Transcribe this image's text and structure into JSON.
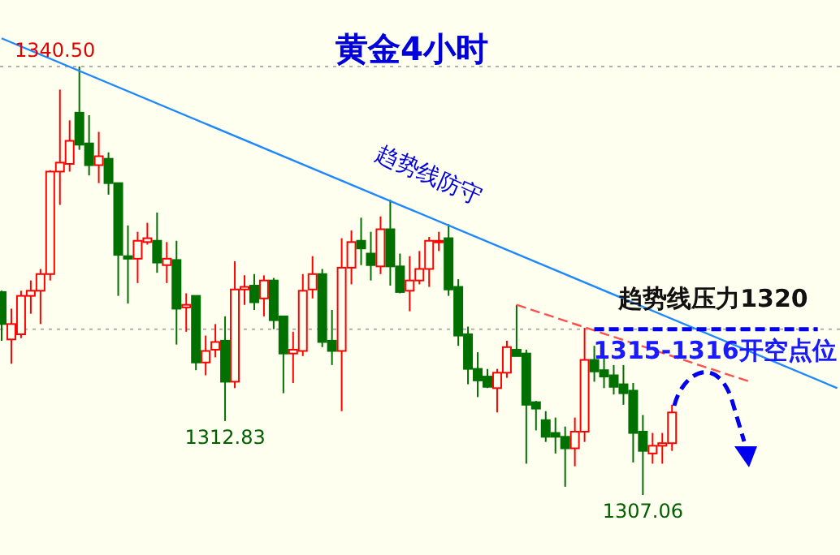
{
  "chart_data": {
    "type": "candlestick",
    "title": "黄金4小时",
    "categories": [
      null,
      null,
      null,
      null,
      null,
      null,
      null,
      null,
      null,
      null,
      null,
      null,
      null,
      null,
      null,
      null,
      null,
      null,
      null,
      null,
      null,
      null,
      null,
      null,
      null,
      null,
      null,
      null,
      null,
      null,
      null,
      null,
      null,
      null,
      null,
      null,
      null,
      null,
      null,
      null,
      null,
      null,
      null,
      null,
      null,
      null,
      null,
      null,
      null,
      null,
      null,
      null,
      null,
      null,
      null,
      null,
      null,
      null,
      null,
      null,
      null,
      null,
      null,
      null,
      null,
      null,
      null,
      null,
      null,
      null,
      null,
      null,
      null,
      null,
      null,
      null,
      null,
      null,
      null,
      null,
      null,
      null,
      null,
      null,
      null,
      null,
      null
    ],
    "ohlc": [
      [
        1322.9,
        1323.0,
        1319.1,
        1320.4
      ],
      [
        1319.2,
        1321.6,
        1317.3,
        1320.4
      ],
      [
        1319.6,
        1323.0,
        1319.3,
        1322.6
      ],
      [
        1322.6,
        1323.8,
        1321.2,
        1323.0
      ],
      [
        1323.0,
        1324.7,
        1320.4,
        1324.3
      ],
      [
        1324.3,
        1332.4,
        1323.8,
        1332.3
      ],
      [
        1332.3,
        1338.7,
        1329.7,
        1333.0
      ],
      [
        1332.9,
        1336.3,
        1332.3,
        1334.7
      ],
      [
        1336.9,
        1340.5,
        1334.0,
        1334.4
      ],
      [
        1334.5,
        1336.7,
        1332.0,
        1332.8
      ],
      [
        1332.8,
        1335.4,
        1331.4,
        1333.5
      ],
      [
        1333.3,
        1333.8,
        1330.5,
        1331.4
      ],
      [
        1331.4,
        1331.4,
        1322.6,
        1325.8
      ],
      [
        1325.7,
        1328.1,
        1322.0,
        1325.5
      ],
      [
        1325.5,
        1327.6,
        1323.6,
        1326.9
      ],
      [
        1326.8,
        1328.3,
        1326.6,
        1327.1
      ],
      [
        1326.9,
        1329.1,
        1324.4,
        1325.2
      ],
      [
        1325.0,
        1326.8,
        1323.6,
        1325.5
      ],
      [
        1325.4,
        1326.9,
        1318.8,
        1321.6
      ],
      [
        1321.7,
        1322.8,
        1319.8,
        1321.9
      ],
      [
        1322.6,
        1322.6,
        1316.8,
        1317.4
      ],
      [
        1317.4,
        1319.5,
        1316.4,
        1318.3
      ],
      [
        1318.4,
        1320.4,
        1317.8,
        1319.0
      ],
      [
        1319.1,
        1321.0,
        1312.83,
        1315.9
      ],
      [
        1315.9,
        1325.3,
        1315.4,
        1323.1
      ],
      [
        1323.1,
        1324.2,
        1321.9,
        1323.3
      ],
      [
        1323.4,
        1324.3,
        1321.5,
        1322.1
      ],
      [
        1322.4,
        1324.2,
        1321.0,
        1323.8
      ],
      [
        1323.8,
        1324.0,
        1320.0,
        1320.7
      ],
      [
        1321.0,
        1321.0,
        1315.0,
        1318.1
      ],
      [
        1318.1,
        1319.8,
        1315.8,
        1318.4
      ],
      [
        1318.3,
        1324.3,
        1317.9,
        1323.0
      ],
      [
        1323.1,
        1325.7,
        1322.4,
        1324.3
      ],
      [
        1324.3,
        1324.7,
        1318.6,
        1319.0
      ],
      [
        1319.1,
        1321.5,
        1317.2,
        1318.3
      ],
      [
        1318.3,
        1327.1,
        1313.6,
        1324.8
      ],
      [
        1324.8,
        1327.7,
        1323.5,
        1326.8
      ],
      [
        1326.9,
        1328.7,
        1325.0,
        1326.3
      ],
      [
        1325.9,
        1327.6,
        1323.8,
        1325.0
      ],
      [
        1324.9,
        1328.8,
        1324.3,
        1327.8
      ],
      [
        1327.8,
        1330.1,
        1323.4,
        1324.9
      ],
      [
        1324.9,
        1325.9,
        1322.8,
        1322.9
      ],
      [
        1323.0,
        1325.7,
        1321.4,
        1323.8
      ],
      [
        1323.8,
        1326.1,
        1323.5,
        1324.7
      ],
      [
        1324.7,
        1327.2,
        1323.3,
        1326.9
      ],
      [
        1326.8,
        1327.6,
        1326.1,
        1326.9
      ],
      [
        1327.1,
        1328.2,
        1322.6,
        1323.1
      ],
      [
        1323.3,
        1323.9,
        1318.7,
        1319.5
      ],
      [
        1319.6,
        1320.2,
        1315.7,
        1316.9
      ],
      [
        1316.9,
        1318.2,
        1314.7,
        1316.0
      ],
      [
        1316.3,
        1316.9,
        1315.4,
        1315.5
      ],
      [
        1315.4,
        1316.9,
        1313.5,
        1316.6
      ],
      [
        1316.6,
        1319.1,
        1316.2,
        1318.6
      ],
      [
        1318.4,
        1321.9,
        1317.9,
        1317.9
      ],
      [
        1318.1,
        1318.4,
        1309.5,
        1314.1
      ],
      [
        1314.3,
        1314.4,
        1312.1,
        1313.8
      ],
      [
        1312.9,
        1313.6,
        1311.2,
        1311.6
      ],
      [
        1311.9,
        1313.1,
        1310.3,
        1311.6
      ],
      [
        1311.6,
        1312.4,
        1307.7,
        1310.7
      ],
      [
        1310.7,
        1313.1,
        1309.3,
        1312.0
      ],
      [
        1312.0,
        1320.1,
        1311.2,
        1317.6
      ],
      [
        1317.6,
        1318.7,
        1315.9,
        1316.7
      ],
      [
        1316.8,
        1317.7,
        1315.4,
        1316.3
      ],
      [
        1316.4,
        1317.2,
        1314.9,
        1315.5
      ],
      [
        1315.7,
        1317.2,
        1314.1,
        1315.0
      ],
      [
        1315.2,
        1315.8,
        1309.6,
        1311.9
      ],
      [
        1312.0,
        1313.3,
        1307.06,
        1310.5
      ],
      [
        1310.3,
        1311.9,
        1309.5,
        1310.9
      ],
      [
        1310.9,
        1311.9,
        1309.5,
        1311.1
      ],
      [
        1311.1,
        1314.1,
        1310.5,
        1313.5
      ],
      null,
      null,
      null,
      null,
      null,
      null,
      null,
      null,
      null,
      null,
      null,
      null,
      null,
      null,
      null,
      null,
      null
    ],
    "series": [
      {
        "type": "line",
        "color": "#1e88ff",
        "line_style": "solid",
        "values": [
          1342.7,
          null,
          null,
          null,
          null,
          null,
          null,
          null,
          null,
          null,
          null,
          null,
          null,
          null,
          null,
          null,
          null,
          null,
          null,
          null,
          null,
          null,
          null,
          null,
          null,
          null,
          null,
          null,
          null,
          null,
          null,
          null,
          null,
          null,
          null,
          null,
          null,
          null,
          null,
          null,
          null,
          null,
          null,
          null,
          null,
          null,
          null,
          null,
          null,
          null,
          null,
          null,
          null,
          null,
          null,
          null,
          null,
          null,
          null,
          null,
          null,
          null,
          null,
          null,
          null,
          null,
          null,
          null,
          null,
          null,
          null,
          null,
          null,
          null,
          null,
          null,
          null,
          null,
          null,
          null,
          null,
          null,
          null,
          null,
          null,
          null,
          1315.4
        ]
      },
      {
        "type": "line",
        "color": "#ff5050",
        "line_style": "dashed",
        "values": [
          null,
          null,
          null,
          null,
          null,
          null,
          null,
          null,
          null,
          null,
          null,
          null,
          null,
          null,
          null,
          null,
          null,
          null,
          null,
          null,
          null,
          null,
          null,
          null,
          null,
          null,
          null,
          null,
          null,
          null,
          null,
          null,
          null,
          null,
          null,
          null,
          null,
          null,
          null,
          null,
          null,
          null,
          null,
          null,
          null,
          null,
          null,
          null,
          null,
          null,
          null,
          null,
          null,
          1321.9,
          null,
          null,
          null,
          null,
          null,
          null,
          null,
          null,
          null,
          null,
          null,
          null,
          null,
          null,
          null,
          null,
          null,
          null,
          null,
          null,
          null,
          null,
          null,
          1315.9,
          null,
          null,
          null,
          null,
          null,
          null,
          null,
          null,
          null
        ]
      },
      {
        "type": "line",
        "color": "#0000ee",
        "line_style": "dashed",
        "values": [
          null,
          null,
          null,
          null,
          null,
          null,
          null,
          null,
          null,
          null,
          null,
          null,
          null,
          null,
          null,
          null,
          null,
          null,
          null,
          null,
          null,
          null,
          null,
          null,
          null,
          null,
          null,
          null,
          null,
          null,
          null,
          null,
          null,
          null,
          null,
          null,
          null,
          null,
          null,
          null,
          null,
          null,
          null,
          null,
          null,
          null,
          null,
          null,
          null,
          null,
          null,
          null,
          null,
          null,
          null,
          null,
          null,
          null,
          null,
          null,
          null,
          1320,
          null,
          null,
          null,
          null,
          null,
          null,
          null,
          null,
          null,
          null,
          null,
          null,
          null,
          null,
          null,
          null,
          null,
          null,
          null,
          null,
          null,
          null,
          1320,
          null,
          null
        ]
      }
    ],
    "ref_lines": [
      {
        "axis": "y",
        "value": 1340.5,
        "color": "#b0b0b0",
        "line_style": "dotted"
      },
      {
        "axis": "y",
        "value": 1320,
        "color": "#b0b0b0",
        "line_style": "dotted"
      }
    ],
    "annotations": [
      {
        "text": "1340.50",
        "y": 1340.5
      },
      {
        "text": "1312.83",
        "y": 1312.83
      },
      {
        "text": "1307.06",
        "y": 1307.06
      },
      "趋势线防守",
      "趋势线压力1320",
      "1315-1316开空点位"
    ],
    "tick_labels": false
  }
}
